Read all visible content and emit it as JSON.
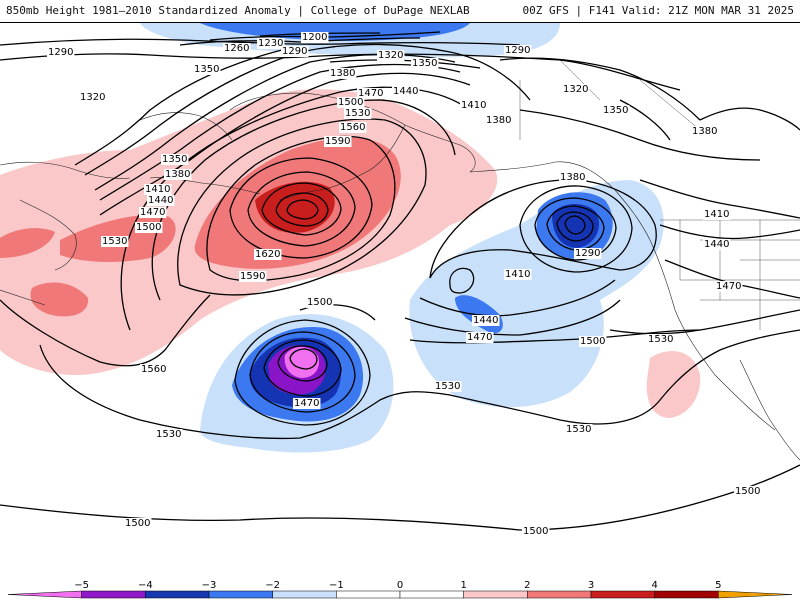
{
  "header": {
    "title_left": "850mb Height 1981–2010 Standardized Anomaly | College of DuPage NEXLAB",
    "title_right": "00Z GFS | F141 Valid: 21Z MON MAR 31 2025"
  },
  "map": {
    "contour_labels": [
      "1200",
      "1230",
      "1260",
      "1290",
      "1290",
      "1290",
      "1320",
      "1320",
      "1320",
      "1350",
      "1350",
      "1350",
      "1350",
      "1380",
      "1380",
      "1380",
      "1380",
      "1380",
      "1410",
      "1410",
      "1410",
      "1410",
      "1440",
      "1440",
      "1440",
      "1440",
      "1470",
      "1470",
      "1470",
      "1470",
      "1470",
      "1500",
      "1500",
      "1500",
      "1500",
      "1500",
      "1500",
      "1500",
      "1530",
      "1530",
      "1530",
      "1530",
      "1530",
      "1530",
      "1560",
      "1560",
      "1590",
      "1590",
      "1620",
      "1290"
    ],
    "anomaly_colors": {
      "m5": "#f070f0",
      "m4": "#8a14c8",
      "m3": "#1434b4",
      "m2": "#3c78f0",
      "m1": "#c8e0fa",
      "p1": "#fac8c8",
      "p2": "#f07878",
      "p3": "#c81e1e",
      "p4": "#a00000",
      "p5": "#f0a000"
    }
  },
  "colorbar": {
    "ticks": [
      "−5",
      "−4",
      "−3",
      "−2",
      "−1",
      "0",
      "1",
      "2",
      "3",
      "4",
      "5"
    ],
    "colors": [
      "#f070f0",
      "#9018c8",
      "#1838b0",
      "#3c78f0",
      "#c8e0fa",
      "#ffffff",
      "#ffffff",
      "#fac8c8",
      "#f07878",
      "#c81e1e",
      "#a00000",
      "#f0a000"
    ]
  }
}
